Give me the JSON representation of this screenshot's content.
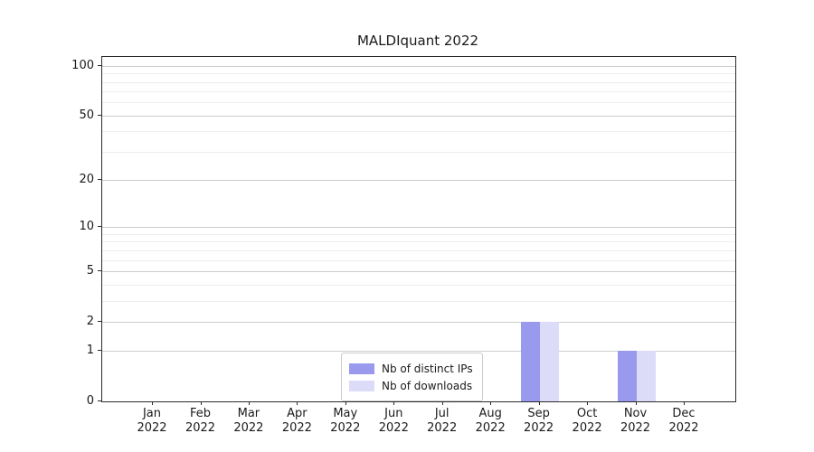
{
  "title": "MALDIquant 2022",
  "chart_data": {
    "type": "bar",
    "title": "MALDIquant 2022",
    "categories": [
      "Jan 2022",
      "Feb 2022",
      "Mar 2022",
      "Apr 2022",
      "May 2022",
      "Jun 2022",
      "Jul 2022",
      "Aug 2022",
      "Sep 2022",
      "Oct 2022",
      "Nov 2022",
      "Dec 2022"
    ],
    "series": [
      {
        "name": "Nb of distinct IPs",
        "color": "#9999ee",
        "values": [
          0,
          0,
          0,
          0,
          0,
          0,
          0,
          0,
          2,
          0,
          1,
          0
        ]
      },
      {
        "name": "Nb of downloads",
        "color": "#dcdcf8",
        "values": [
          0,
          0,
          0,
          0,
          0,
          0,
          0,
          0,
          2,
          0,
          1,
          0
        ]
      }
    ],
    "xlabel": "",
    "ylabel": "",
    "yscale": "log1p",
    "yticks": [
      0,
      1,
      2,
      5,
      10,
      20,
      50,
      100
    ],
    "minor_gridlines": [
      1,
      2,
      3,
      4,
      5,
      6,
      7,
      8,
      9,
      10,
      20,
      30,
      40,
      50,
      60,
      70,
      80,
      90,
      100
    ],
    "ylim": [
      0,
      113
    ],
    "grid": "horizontal",
    "legend_position": "bottom-center"
  }
}
